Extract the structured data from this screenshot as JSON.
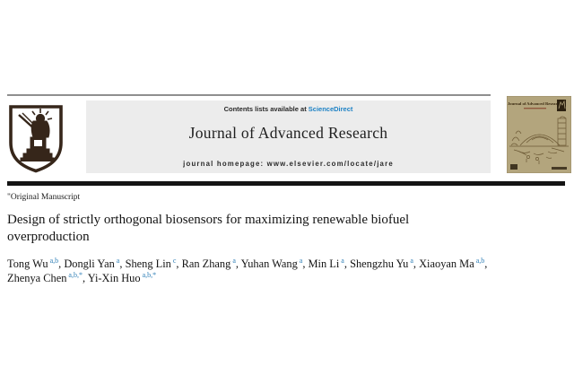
{
  "header": {
    "contents_prefix": "Contents lists available at ",
    "sciencedirect_label": "ScienceDirect",
    "journal_name": "Journal of Advanced Research",
    "homepage_line": "journal homepage: www.elsevier.com/locate/jare",
    "logo_icon": "elsevier-tree-emblem",
    "cover": {
      "title": "Journal of Advanced Research"
    }
  },
  "article": {
    "type_label": "\"Original Manuscript",
    "title": "Design of strictly orthogonal biosensors for maximizing renewable biofuel overproduction",
    "author_separator": ", ",
    "authors": [
      {
        "name": "Tong Wu",
        "sup": "a,b"
      },
      {
        "name": "Dongli Yan",
        "sup": "a"
      },
      {
        "name": "Sheng Lin",
        "sup": "c"
      },
      {
        "name": "Ran Zhang",
        "sup": "a"
      },
      {
        "name": "Yuhan Wang",
        "sup": "a"
      },
      {
        "name": "Min Li",
        "sup": "a"
      },
      {
        "name": "Shengzhu Yu",
        "sup": "a"
      },
      {
        "name": "Xiaoyan Ma",
        "sup": "a,b",
        "break_after": true
      },
      {
        "name": "Zhenya Chen",
        "sup": "a,b,*"
      },
      {
        "name": "Yi-Xin Huo",
        "sup": "a,b,*"
      }
    ]
  },
  "colors": {
    "link_blue": "#1e82c5",
    "sup_blue": "#2f7fb6",
    "header_box_bg": "#ececec",
    "black_bar": "#141414",
    "logo_brown": "#36261a",
    "cover_tan": "#b3a57d",
    "cover_ink": "#6d5a36",
    "cover_title_ink": "#3a2a10"
  }
}
